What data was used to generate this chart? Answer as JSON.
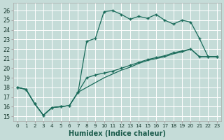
{
  "xlabel": "Humidex (Indice chaleur)",
  "bg_color": "#c5dcd8",
  "grid_color": "#ffffff",
  "line_color": "#1a6b5a",
  "ylim": [
    14.5,
    26.8
  ],
  "xlim": [
    -0.5,
    23.5
  ],
  "yticks": [
    15,
    16,
    17,
    18,
    19,
    20,
    21,
    22,
    23,
    24,
    25,
    26
  ],
  "xticks": [
    0,
    1,
    2,
    3,
    4,
    5,
    6,
    7,
    8,
    9,
    10,
    11,
    12,
    13,
    14,
    15,
    16,
    17,
    18,
    19,
    20,
    21,
    22,
    23
  ],
  "line1_x": [
    0,
    1,
    2,
    3,
    4,
    5,
    6,
    7,
    8,
    9,
    10,
    11,
    12,
    13,
    14,
    15,
    16,
    17,
    18,
    19,
    20,
    21,
    22,
    23
  ],
  "line1_y": [
    18.0,
    17.8,
    16.3,
    15.1,
    15.9,
    16.0,
    16.1,
    17.5,
    22.8,
    23.1,
    25.9,
    26.0,
    25.6,
    25.1,
    25.4,
    25.2,
    25.6,
    25.0,
    24.6,
    25.0,
    24.8,
    23.1,
    21.2,
    21.2
  ],
  "line2_x": [
    0,
    1,
    2,
    3,
    4,
    5,
    6,
    7,
    8,
    9,
    10,
    11,
    12,
    13,
    14,
    15,
    16,
    17,
    18,
    19,
    20,
    21,
    22,
    23
  ],
  "line2_y": [
    18.0,
    17.8,
    16.3,
    15.1,
    15.9,
    16.0,
    16.1,
    17.5,
    19.0,
    19.3,
    19.5,
    19.7,
    20.0,
    20.3,
    20.6,
    20.9,
    21.1,
    21.3,
    21.6,
    21.8,
    22.0,
    21.2,
    21.2,
    21.2
  ],
  "line3_x": [
    0,
    1,
    2,
    3,
    4,
    5,
    6,
    7,
    8,
    9,
    10,
    11,
    12,
    13,
    14,
    15,
    16,
    17,
    18,
    19,
    20,
    21,
    22,
    23
  ],
  "line3_y": [
    18.0,
    17.8,
    16.3,
    15.1,
    15.9,
    16.0,
    16.1,
    17.5,
    18.0,
    18.5,
    19.0,
    19.4,
    19.8,
    20.1,
    20.5,
    20.8,
    21.0,
    21.2,
    21.5,
    21.7,
    22.0,
    21.2,
    21.2,
    21.2
  ]
}
